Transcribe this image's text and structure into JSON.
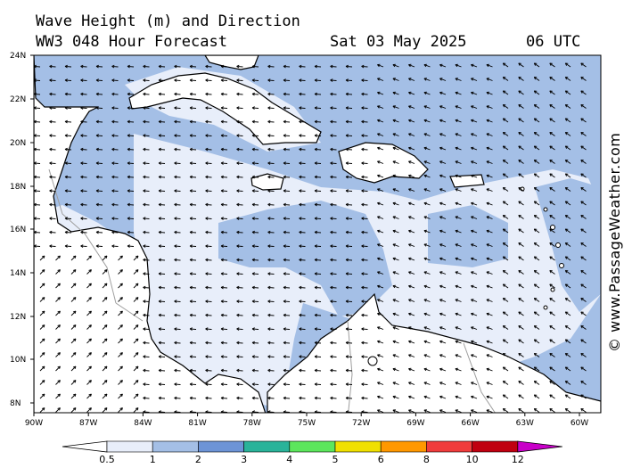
{
  "header": {
    "title_line1": "Wave Height (m) and Direction",
    "title_line2": "WW3 048 Hour Forecast",
    "date": "Sat 03 May 2025",
    "time": "06 UTC"
  },
  "credit": "© www.PassageWeather.com",
  "axes": {
    "lat_labels": [
      "24N",
      "22N",
      "20N",
      "18N",
      "16N",
      "14N",
      "12N",
      "10N",
      "8N"
    ],
    "lon_labels": [
      "90W",
      "87W",
      "84W",
      "81W",
      "78W",
      "75W",
      "72W",
      "69W",
      "66W",
      "63W",
      "60W"
    ]
  },
  "legend": {
    "labels": [
      "0.5",
      "1",
      "2",
      "3",
      "4",
      "5",
      "6",
      "8",
      "10",
      "12"
    ],
    "colors": [
      "#e8eefa",
      "#a4bfe6",
      "#6d94d6",
      "#2ab39a",
      "#5ce65c",
      "#f0e000",
      "#ff9800",
      "#f03c3c",
      "#c00010",
      "#c800c8"
    ]
  },
  "map_colors": {
    "sea_low": "#e8eefa",
    "sea_mid": "#a4bfe6",
    "land": "#ffffff",
    "coast": "#000000",
    "border": "#9e9e9e"
  }
}
